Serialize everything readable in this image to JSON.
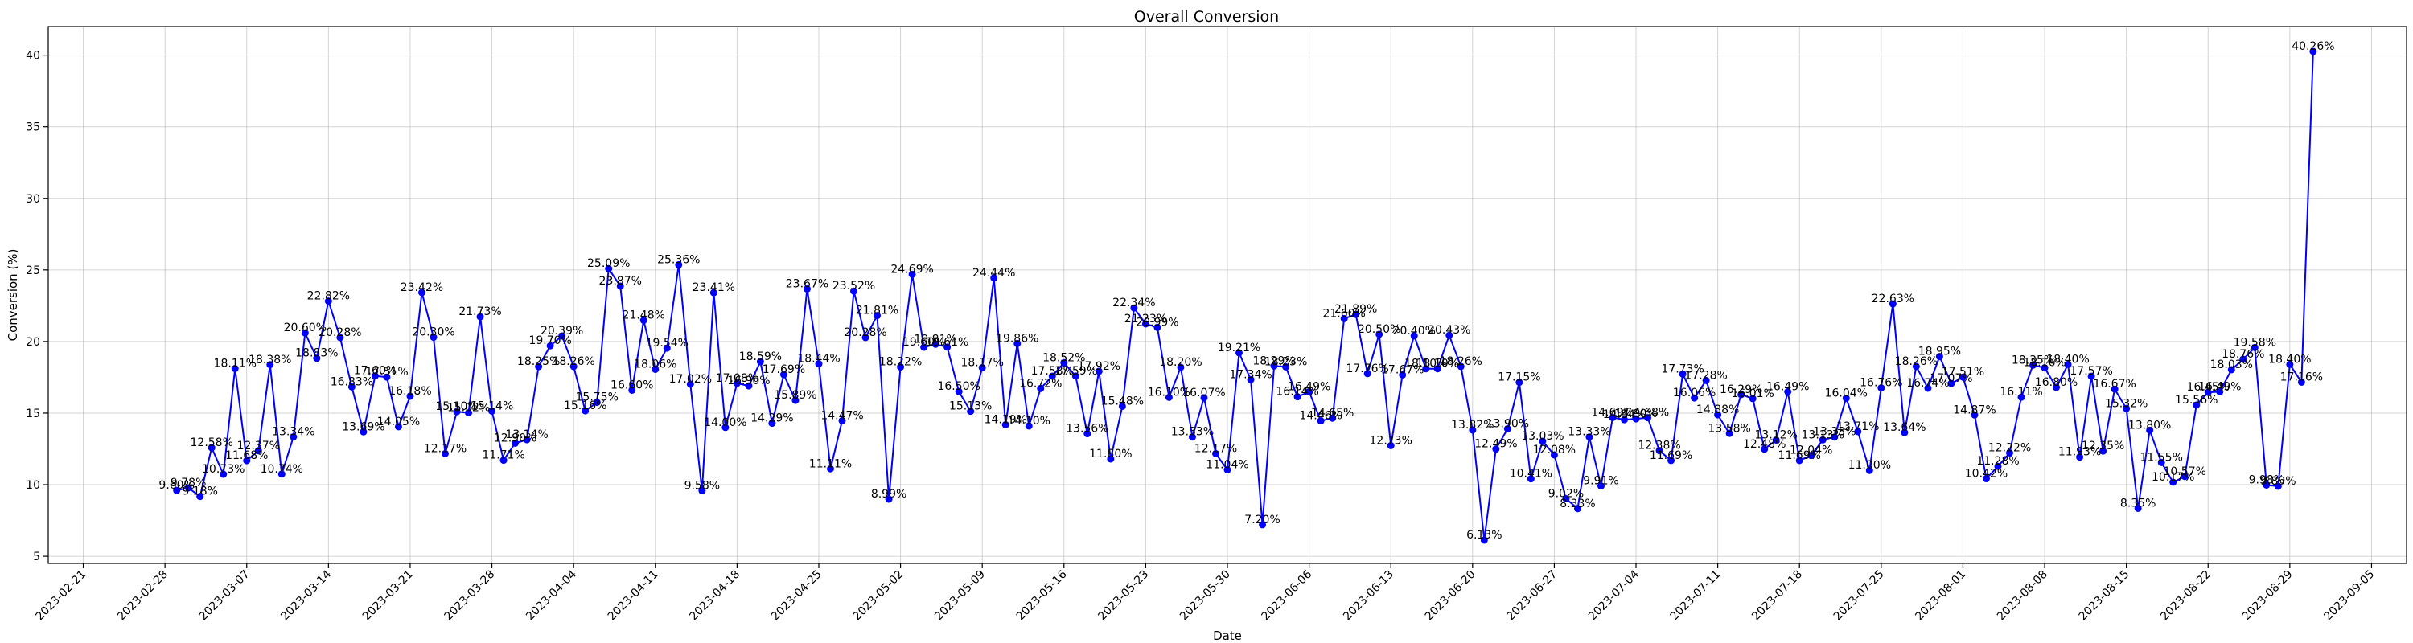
{
  "chart_data": {
    "type": "line",
    "title": "Overall Conversion",
    "xlabel": "Date",
    "ylabel": "Conversion (%)",
    "x_range": [
      "2023-02-18",
      "2023-09-08"
    ],
    "ylim": [
      4.5,
      42
    ],
    "grid": true,
    "color": "#0000ff",
    "x_ticks": [
      "2023-02-21",
      "2023-02-28",
      "2023-03-07",
      "2023-03-14",
      "2023-03-21",
      "2023-03-28",
      "2023-04-04",
      "2023-04-11",
      "2023-04-18",
      "2023-04-25",
      "2023-05-02",
      "2023-05-09",
      "2023-05-16",
      "2023-05-23",
      "2023-05-30",
      "2023-06-06",
      "2023-06-13",
      "2023-06-20",
      "2023-06-27",
      "2023-07-04",
      "2023-07-11",
      "2023-07-18",
      "2023-07-25",
      "2023-08-01",
      "2023-08-08",
      "2023-08-15",
      "2023-08-22",
      "2023-08-29",
      "2023-09-05"
    ],
    "y_ticks": [
      5,
      10,
      15,
      20,
      25,
      30,
      35,
      40
    ],
    "start_date": "2023-03-01",
    "values": [
      9.6,
      9.78,
      9.18,
      12.58,
      10.73,
      18.11,
      11.68,
      12.37,
      18.38,
      10.74,
      13.34,
      20.6,
      18.83,
      22.82,
      20.28,
      16.83,
      13.69,
      17.6,
      17.51,
      14.05,
      16.18,
      23.42,
      20.3,
      12.17,
      15.1,
      15.02,
      21.73,
      15.14,
      11.71,
      12.9,
      13.14,
      18.25,
      19.7,
      20.39,
      18.26,
      15.16,
      15.75,
      25.09,
      23.87,
      16.6,
      21.48,
      18.06,
      19.54,
      25.36,
      17.02,
      9.58,
      23.41,
      14.0,
      17.08,
      16.9,
      18.59,
      14.29,
      17.69,
      15.89,
      23.67,
      18.44,
      11.11,
      14.47,
      23.52,
      20.28,
      21.81,
      8.99,
      18.22,
      24.69,
      19.6,
      19.81,
      19.61,
      16.5,
      15.13,
      18.17,
      24.44,
      14.19,
      19.86,
      14.1,
      16.72,
      17.58,
      18.52,
      17.59,
      13.56,
      17.92,
      11.8,
      15.48,
      22.34,
      21.23,
      20.99,
      16.1,
      18.2,
      13.33,
      16.07,
      12.17,
      11.04,
      19.21,
      17.34,
      7.2,
      18.29,
      18.23,
      16.14,
      16.49,
      14.46,
      14.65,
      21.6,
      21.89,
      17.76,
      20.5,
      12.73,
      17.67,
      20.4,
      18.1,
      18.1,
      20.43,
      18.26,
      13.82,
      6.13,
      12.49,
      13.9,
      17.15,
      10.41,
      13.03,
      12.08,
      9.02,
      8.33,
      13.33,
      9.91,
      14.69,
      14.54,
      14.6,
      14.68,
      12.38,
      11.69,
      17.73,
      16.06,
      17.28,
      14.88,
      13.58,
      16.29,
      16.01,
      12.48,
      13.12,
      16.49,
      11.69,
      12.04,
      13.13,
      13.33,
      16.04,
      13.71,
      11.0,
      16.76,
      22.63,
      13.64,
      18.26,
      16.74,
      18.95,
      17.07,
      17.51,
      14.87,
      10.42,
      11.28,
      12.22,
      16.11,
      18.35,
      18.16,
      16.8,
      18.4,
      11.93,
      17.57,
      12.35,
      16.67,
      15.32,
      8.35,
      13.8,
      11.55,
      10.17,
      10.57,
      15.56,
      16.45,
      16.49,
      18.03,
      18.76,
      19.58,
      9.98,
      9.89,
      18.4,
      17.16,
      40.26
    ],
    "labels": [
      "9.60%",
      "9.78%",
      "9.18%",
      "12.58%",
      "10.73%",
      "18.11%",
      "11.68%",
      "12.37%",
      "18.38%",
      "10.74%",
      "13.34%",
      "20.60%",
      "18.83%",
      "22.82%",
      "20.28%",
      "16.83%",
      "13.69%",
      "17.60%",
      "17.51%",
      "14.05%",
      "16.18%",
      "23.42%",
      "20.30%",
      "12.17%",
      "15.10%",
      "15.02%",
      "21.73%",
      "15.14%",
      "11.71%",
      "12.90%",
      "13.14%",
      "18.25%",
      "19.70%",
      "20.39%",
      "18.26%",
      "15.16%",
      "15.75%",
      "25.09%",
      "23.87%",
      "16.60%",
      "21.48%",
      "18.06%",
      "19.54%",
      "25.36%",
      "17.02%",
      "9.58%",
      "23.41%",
      "14.00%",
      "17.08%",
      "16.90%",
      "18.59%",
      "14.29%",
      "17.69%",
      "15.89%",
      "23.67%",
      "18.44%",
      "11.11%",
      "14.47%",
      "23.52%",
      "20.28%",
      "21.81%",
      "8.99%",
      "18.22%",
      "24.69%",
      "19.60%",
      "19.81%",
      "19.61%",
      "16.50%",
      "15.13%",
      "18.17%",
      "24.44%",
      "14.19%",
      "19.86%",
      "14.10%",
      "16.72%",
      "17.58%",
      "18.52%",
      "17.59%",
      "13.56%",
      "17.92%",
      "11.80%",
      "15.48%",
      "22.34%",
      "21.23%",
      "20.99%",
      "16.10%",
      "18.20%",
      "13.33%",
      "16.07%",
      "12.17%",
      "11.04%",
      "19.21%",
      "17.34%",
      "7.20%",
      "18.29%",
      "18.23%",
      "16.14%",
      "16.49%",
      "14.46%",
      "14.65%",
      "21.60%",
      "21.89%",
      "17.76%",
      "20.50%",
      "12.73%",
      "17.67%",
      "20.40%",
      "18.10%",
      "18.10%",
      "20.43%",
      "18.26%",
      "13.82%",
      "6.13%",
      "12.49%",
      "13.90%",
      "17.15%",
      "10.41%",
      "13.03%",
      "12.08%",
      "9.02%",
      "8.33%",
      "13.33%",
      "9.91%",
      "14.69%",
      "14.54%",
      "14.60%",
      "14.68%",
      "12.38%",
      "11.69%",
      "17.73%",
      "16.06%",
      "17.28%",
      "14.88%",
      "13.58%",
      "16.29%",
      "16.01%",
      "12.48%",
      "13.12%",
      "16.49%",
      "11.69%",
      "12.04%",
      "13.13%",
      "13.33%",
      "16.04%",
      "13.71%",
      "11.00%",
      "16.76%",
      "22.63%",
      "13.64%",
      "18.26%",
      "16.74%",
      "18.95%",
      "17.07%",
      "17.51%",
      "14.87%",
      "10.42%",
      "11.28%",
      "12.22%",
      "16.11%",
      "18.35%",
      "18.16%",
      "16.80%",
      "18.40%",
      "11.93%",
      "17.57%",
      "12.35%",
      "16.67%",
      "15.32%",
      "8.35%",
      "13.80%",
      "11.55%",
      "10.17%",
      "10.57%",
      "15.56%",
      "16.45%",
      "16.49%",
      "18.03%",
      "18.76%",
      "19.58%",
      "9.98%",
      "9.89%",
      "18.40%",
      "17.16%",
      "40.26%"
    ]
  }
}
